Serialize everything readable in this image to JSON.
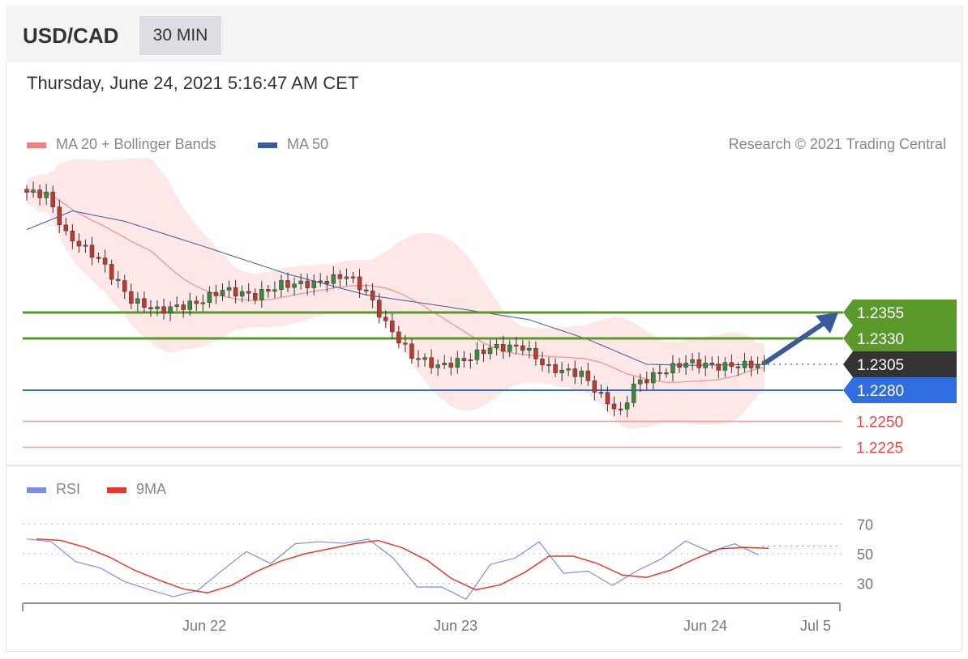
{
  "header": {
    "symbol": "USD/CAD",
    "timeframe": "30 MIN"
  },
  "timestamp": "Thursday, June 24, 2021 5:16:47 AM CET",
  "legend": {
    "ma20": "MA 20 + Bollinger Bands",
    "ma50": "MA 50",
    "credit": "Research © 2021 Trading Central",
    "rsi": "RSI",
    "rsi_ma": "9MA"
  },
  "colors": {
    "ma20": "#ee8080",
    "ma50": "#3a5b9b",
    "green": "#5a9a2a",
    "dark": "#333333",
    "blue": "#2f6de0",
    "red": "#ee4444",
    "rsi": "#7b8fe8",
    "rsi_ma": "#e8382c"
  },
  "chart_data": [
    {
      "type": "candlestick",
      "title": "USD/CAD 30 MIN",
      "price_path": [
        [
          0,
          1.2471
        ],
        [
          3,
          1.2469
        ],
        [
          6,
          1.243
        ],
        [
          11,
          1.2407
        ],
        [
          16,
          1.2367
        ],
        [
          20,
          1.2357
        ],
        [
          26,
          1.2364
        ],
        [
          30,
          1.2377
        ],
        [
          35,
          1.2371
        ],
        [
          39,
          1.2382
        ],
        [
          44,
          1.2383
        ],
        [
          49,
          1.2391
        ],
        [
          52,
          1.2375
        ],
        [
          55,
          1.2344
        ],
        [
          59,
          1.2313
        ],
        [
          63,
          1.2303
        ],
        [
          67,
          1.2309
        ],
        [
          71,
          1.2321
        ],
        [
          76,
          1.2322
        ],
        [
          80,
          1.2301
        ],
        [
          85,
          1.2296
        ],
        [
          88,
          1.2274
        ],
        [
          91,
          1.2258
        ],
        [
          93,
          1.2285
        ],
        [
          97,
          1.2297
        ],
        [
          101,
          1.2307
        ],
        [
          106,
          1.2303
        ],
        [
          113,
          1.2305
        ]
      ],
      "ma50": [
        [
          0,
          1.2435
        ],
        [
          7,
          1.2453
        ],
        [
          15,
          1.2443
        ],
        [
          27,
          1.2419
        ],
        [
          40,
          1.2392
        ],
        [
          52,
          1.2372
        ],
        [
          65,
          1.236
        ],
        [
          77,
          1.2348
        ],
        [
          86,
          1.2329
        ],
        [
          95,
          1.2305
        ],
        [
          102,
          1.2304
        ],
        [
          113,
          1.2305
        ]
      ],
      "levels": [
        {
          "label": "1.2355",
          "value": 1.2355,
          "kind": "resistance",
          "style": "green"
        },
        {
          "label": "1.2330",
          "value": 1.233,
          "kind": "resistance",
          "style": "green"
        },
        {
          "label": "1.2305",
          "value": 1.2305,
          "kind": "last",
          "style": "dark"
        },
        {
          "label": "1.2280",
          "value": 1.228,
          "kind": "pivot",
          "style": "blue"
        },
        {
          "label": "1.2250",
          "value": 1.225,
          "kind": "support",
          "style": "red"
        },
        {
          "label": "1.2225",
          "value": 1.2225,
          "kind": "support",
          "style": "red"
        }
      ],
      "target_arrow": {
        "from": 1.2305,
        "to": 1.2355
      },
      "price_range": [
        1.2215,
        1.25
      ]
    },
    {
      "type": "line",
      "title": "RSI",
      "yticks": [
        "70",
        "50",
        "30"
      ],
      "rsi": [
        60,
        58,
        45,
        40,
        32,
        25,
        22,
        24,
        40,
        50,
        45,
        55,
        60,
        55,
        62,
        45,
        30,
        25,
        22,
        40,
        50,
        55,
        40,
        35,
        32,
        35,
        50,
        55,
        55,
        53,
        53
      ],
      "xlabels": [
        "Jun 22",
        "Jun 23",
        "Jun 24",
        "Jul 5"
      ],
      "ylim": [
        15,
        80
      ]
    }
  ]
}
